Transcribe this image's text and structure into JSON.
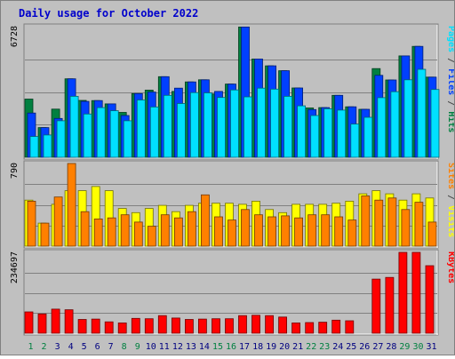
{
  "chart_data": {
    "type": "bar",
    "title": "Daily usage for October 2022",
    "days": [
      "1",
      "2",
      "3",
      "4",
      "5",
      "6",
      "7",
      "8",
      "9",
      "10",
      "11",
      "12",
      "13",
      "14",
      "15",
      "16",
      "17",
      "18",
      "19",
      "20",
      "21",
      "22",
      "23",
      "24",
      "25",
      "26",
      "27",
      "28",
      "29",
      "30",
      "31"
    ],
    "weekend_days": [
      "1",
      "2",
      "8",
      "9",
      "15",
      "16",
      "22",
      "23",
      "29",
      "30"
    ],
    "panels": [
      {
        "id": "hits-files-pages",
        "ymax": 6728,
        "ymax_label": "6728",
        "axis_label_parts": [
          {
            "text": "Pages",
            "color": "#00e0ff"
          },
          {
            "text": " / ",
            "color": "#4a4a4a"
          },
          {
            "text": "Files",
            "color": "#0040ff"
          },
          {
            "text": " / ",
            "color": "#4a4a4a"
          },
          {
            "text": "Hits",
            "color": "#008040"
          }
        ],
        "series": [
          {
            "name": "Hits",
            "color": "#008040",
            "values": [
              3000,
              1530,
              2480,
              4040,
              2930,
              2920,
              2750,
              2310,
              3280,
              3460,
              4150,
              3390,
              3880,
              3990,
              3260,
              3770,
              6710,
              5060,
              4710,
              4460,
              3570,
              2540,
              2560,
              3190,
              2600,
              2470,
              4570,
              3980,
              5220,
              5710,
              4130
            ]
          },
          {
            "name": "Files",
            "color": "#0040ff",
            "values": [
              2280,
              1530,
              2000,
              4040,
              2880,
              2920,
              2750,
              2150,
              3280,
              3360,
              4150,
              3560,
              3880,
              3990,
              3390,
              3770,
              6710,
              5060,
              4710,
              4460,
              3570,
              2460,
              2560,
              3190,
              2600,
              2470,
              4220,
              3980,
              5220,
              5710,
              4130
            ]
          },
          {
            "name": "Pages",
            "color": "#00e0ff",
            "values": [
              1070,
              1150,
              1880,
              3140,
              2230,
              2560,
              2400,
              1880,
              2950,
              2590,
              3190,
              2770,
              3330,
              3320,
              3080,
              3470,
              3110,
              3560,
              3510,
              3140,
              2650,
              2150,
              2500,
              2430,
              1710,
              2060,
              3070,
              3380,
              3990,
              4530,
              3490
            ]
          }
        ]
      },
      {
        "id": "visits-sites",
        "ymax": 790,
        "ymax_label": "790",
        "axis_label_parts": [
          {
            "text": "Sites",
            "color": "#ff8000"
          },
          {
            "text": " / ",
            "color": "#4a4a4a"
          },
          {
            "text": "Visits",
            "color": "#ffff00"
          }
        ],
        "series": [
          {
            "name": "Visits",
            "color": "#ffff00",
            "values": [
              440,
              220,
              400,
              530,
              530,
              570,
              530,
              360,
              320,
              360,
              390,
              330,
              390,
              410,
              410,
              410,
              400,
              430,
              350,
              320,
              400,
              400,
              400,
              410,
              430,
              500,
              530,
              500,
              440,
              500,
              460
            ]
          },
          {
            "name": "Sites",
            "color": "#ff8000",
            "values": [
              430,
              220,
              470,
              790,
              330,
              260,
              270,
              300,
              230,
              190,
              300,
              270,
              330,
              490,
              280,
              250,
              350,
              300,
              280,
              290,
              270,
              300,
              300,
              280,
              250,
              480,
              440,
              460,
              350,
              420,
              230
            ]
          }
        ]
      },
      {
        "id": "kbytes",
        "ymax": 234697,
        "ymax_label": "234697",
        "axis_label_parts": [
          {
            "text": "KBytes",
            "color": "#ff0000"
          }
        ],
        "series": [
          {
            "name": "KBytes",
            "color": "#ff0000",
            "values": [
              62000,
              56000,
              70000,
              68000,
              40000,
              41000,
              33000,
              30000,
              43000,
              42000,
              51000,
              44000,
              40000,
              41000,
              42000,
              42000,
              51000,
              52000,
              51000,
              47000,
              30000,
              31000,
              32000,
              38000,
              36000,
              0,
              157000,
              162000,
              234697,
              234697,
              196000
            ]
          }
        ]
      }
    ]
  }
}
